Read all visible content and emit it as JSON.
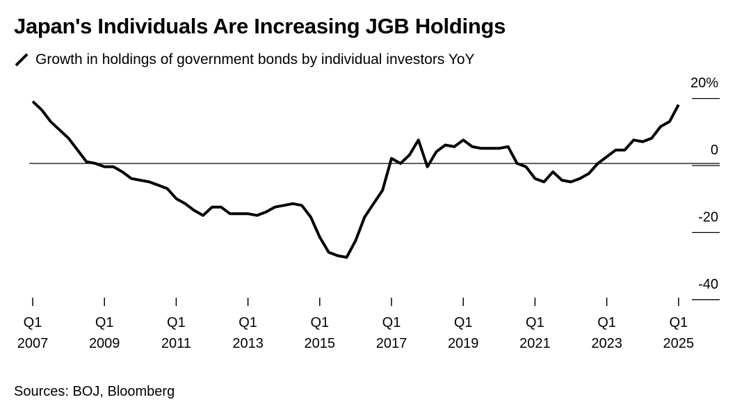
{
  "title": "Japan's Individuals Are Increasing JGB Holdings",
  "source": "Sources: BOJ, Bloomberg",
  "colors": {
    "line": "#000000",
    "zero_line": "#000000",
    "text": "#000000"
  },
  "chart_data": {
    "type": "line",
    "title": "Japan's Individuals Are Increasing JGB Holdings",
    "subtitle": "",
    "xlabel": "",
    "ylabel": "",
    "ylim": [
      -40,
      20
    ],
    "xlim": [
      "2007-Q1",
      "2025-Q1"
    ],
    "grid": false,
    "legend": "top-left",
    "y_ticks": [
      {
        "value": 20,
        "label": "20%"
      },
      {
        "value": 0,
        "label": "0"
      },
      {
        "value": -20,
        "label": "-20"
      },
      {
        "value": -40,
        "label": "-40"
      }
    ],
    "x_ticks": [
      {
        "year": 2007,
        "quarter": "Q1",
        "label_year": "2007"
      },
      {
        "year": 2009,
        "quarter": "Q1",
        "label_year": "2009"
      },
      {
        "year": 2011,
        "quarter": "Q1",
        "label_year": "2011"
      },
      {
        "year": 2013,
        "quarter": "Q1",
        "label_year": "2013"
      },
      {
        "year": 2015,
        "quarter": "Q1",
        "label_year": "2015"
      },
      {
        "year": 2017,
        "quarter": "Q1",
        "label_year": "2017"
      },
      {
        "year": 2019,
        "quarter": "Q1",
        "label_year": "2019"
      },
      {
        "year": 2021,
        "quarter": "Q1",
        "label_year": "2021"
      },
      {
        "year": 2023,
        "quarter": "Q1",
        "label_year": "2023"
      },
      {
        "year": 2025,
        "quarter": "Q1",
        "label_year": "2025"
      }
    ],
    "series": [
      {
        "name": "Growth in holdings of government bonds by individual investors YoY",
        "x": [
          "2007-Q1",
          "2007-Q2",
          "2007-Q3",
          "2007-Q4",
          "2008-Q1",
          "2008-Q2",
          "2008-Q3",
          "2008-Q4",
          "2009-Q1",
          "2009-Q2",
          "2009-Q3",
          "2009-Q4",
          "2010-Q1",
          "2010-Q2",
          "2010-Q3",
          "2010-Q4",
          "2011-Q1",
          "2011-Q2",
          "2011-Q3",
          "2011-Q4",
          "2012-Q1",
          "2012-Q2",
          "2012-Q3",
          "2012-Q4",
          "2013-Q1",
          "2013-Q2",
          "2013-Q3",
          "2013-Q4",
          "2014-Q1",
          "2014-Q2",
          "2014-Q3",
          "2014-Q4",
          "2015-Q1",
          "2015-Q2",
          "2015-Q3",
          "2015-Q4",
          "2016-Q1",
          "2016-Q2",
          "2016-Q3",
          "2016-Q4",
          "2017-Q1",
          "2017-Q2",
          "2017-Q3",
          "2017-Q4",
          "2018-Q1",
          "2018-Q2",
          "2018-Q3",
          "2018-Q4",
          "2019-Q1",
          "2019-Q2",
          "2019-Q3",
          "2019-Q4",
          "2020-Q1",
          "2020-Q2",
          "2020-Q3",
          "2020-Q4",
          "2021-Q1",
          "2021-Q2",
          "2021-Q3",
          "2021-Q4",
          "2022-Q1",
          "2022-Q2",
          "2022-Q3",
          "2022-Q4",
          "2023-Q1",
          "2023-Q2",
          "2023-Q3",
          "2023-Q4",
          "2024-Q1",
          "2024-Q2",
          "2024-Q3",
          "2024-Q4",
          "2025-Q1"
        ],
        "values": [
          18.5,
          16,
          12.5,
          10,
          7.5,
          4,
          0.5,
          0,
          -1,
          -1,
          -2.5,
          -4.5,
          -5,
          -5.5,
          -6.5,
          -7.5,
          -10.5,
          -12,
          -14,
          -15.5,
          -13,
          -13,
          -15,
          -15,
          -15,
          -15.5,
          -14.5,
          -13,
          -12.5,
          -12,
          -12.5,
          -16,
          -22,
          -26.5,
          -27.5,
          -28,
          -23,
          -16,
          -12,
          -8,
          1.5,
          0,
          2.5,
          7,
          -1,
          3.5,
          5.5,
          5,
          7,
          5,
          4.5,
          4.5,
          4.5,
          5,
          0,
          -1,
          -4.5,
          -5.5,
          -2.5,
          -5,
          -5.5,
          -4.5,
          -3,
          0,
          2,
          4,
          4,
          7,
          6.5,
          7.5,
          11,
          12.5,
          17.5
        ]
      }
    ]
  }
}
